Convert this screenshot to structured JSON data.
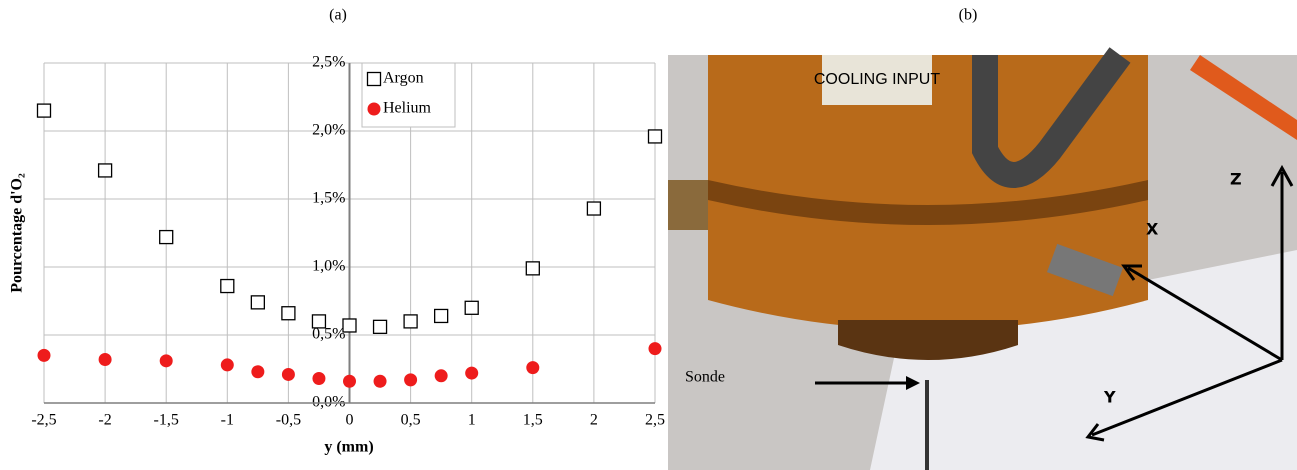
{
  "panel_labels": [
    "(a)",
    "(b)"
  ],
  "chart_data": {
    "type": "scatter",
    "xlabel": "y (mm)",
    "ylabel": "Pourcentage d'O₂",
    "xlim": [
      -2.5,
      2.5
    ],
    "xticks": [
      {
        "value": -2.5,
        "label": "-2,5"
      },
      -2,
      {
        "value": -1.5,
        "label": "-1,5"
      },
      -1,
      {
        "value": -0.5,
        "label": "-0,5"
      },
      0,
      {
        "value": 0.5,
        "label": "0,5"
      },
      1,
      {
        "value": 1.5,
        "label": "1,5"
      },
      2,
      {
        "value": 2.5,
        "label": "2,5"
      }
    ],
    "ylim": [
      0,
      2.5
    ],
    "yticks": [
      {
        "value": 0,
        "label": "0,0%"
      },
      {
        "value": 0.5,
        "label": "0,5%"
      },
      {
        "value": 1,
        "label": "1,0%"
      },
      {
        "value": 1.5,
        "label": "1,5%"
      },
      {
        "value": 2,
        "label": "2,0%"
      },
      {
        "value": 2.5,
        "label": "2,5%"
      }
    ],
    "grid": true,
    "legend": "upper center",
    "series": [
      {
        "name": "Argon",
        "color": "#000000",
        "marker": "square",
        "x": [
          -2.5,
          -2,
          -1.5,
          -1,
          -0.75,
          -0.5,
          -0.25,
          0,
          0.25,
          0.5,
          0.75,
          1,
          1.5,
          2,
          2.5
        ],
        "values": [
          2.15,
          1.71,
          1.22,
          0.86,
          0.74,
          0.66,
          0.6,
          0.57,
          0.56,
          0.6,
          0.64,
          0.7,
          0.99,
          1.43,
          1.96
        ]
      },
      {
        "name": "Helium",
        "color": "#ee1c1c",
        "marker": "circle",
        "x": [
          -2.5,
          -2,
          -1.5,
          -1,
          -0.75,
          -0.5,
          -0.25,
          0,
          0.25,
          0.5,
          0.75,
          1,
          1.5,
          2.5
        ],
        "values": [
          0.35,
          0.32,
          0.31,
          0.28,
          0.23,
          0.21,
          0.18,
          0.16,
          0.16,
          0.17,
          0.2,
          0.22,
          0.26,
          0.4
        ]
      }
    ]
  },
  "photo": {
    "plate": "COOLING INPUT",
    "probe": "Sonde",
    "axes": [
      "X",
      "Y",
      "Z"
    ]
  }
}
